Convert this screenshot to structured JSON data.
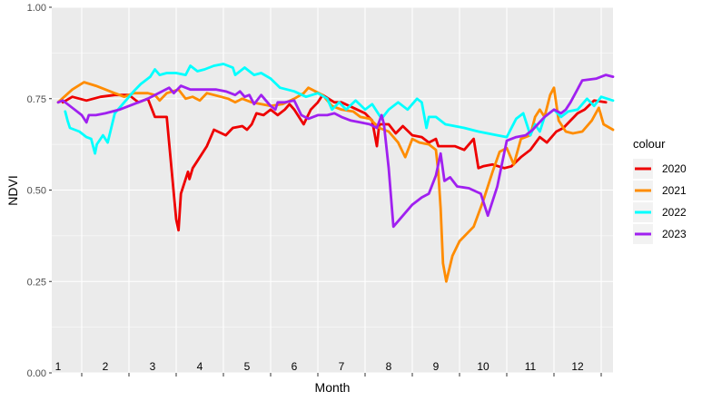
{
  "chart_data": {
    "type": "line",
    "xlabel": "Month",
    "ylabel": "NDVI",
    "ylim": [
      0,
      1
    ],
    "y_ticks": [
      {
        "v": 0,
        "label": "0.00"
      },
      {
        "v": 0.25,
        "label": "0.25"
      },
      {
        "v": 0.5,
        "label": "0.50"
      },
      {
        "v": 0.75,
        "label": "0.75"
      },
      {
        "v": 1,
        "label": "1.00"
      }
    ],
    "month_labels": [
      "1",
      "2",
      "3",
      "4",
      "5",
      "6",
      "7",
      "8",
      "9",
      "10",
      "11",
      "12"
    ],
    "legend_title": "colour",
    "legend_position": "right",
    "background": "#ebebeb",
    "grid": true,
    "series": [
      {
        "name": "2020",
        "color": "#ee0000",
        "points": [
          [
            1.1,
            0.74
          ],
          [
            1.3,
            0.755
          ],
          [
            1.6,
            0.745
          ],
          [
            1.9,
            0.755
          ],
          [
            2.2,
            0.76
          ],
          [
            2.5,
            0.76
          ],
          [
            2.7,
            0.74
          ],
          [
            2.9,
            0.75
          ],
          [
            3.05,
            0.7
          ],
          [
            3.3,
            0.7
          ],
          [
            3.5,
            0.42
          ],
          [
            3.55,
            0.39
          ],
          [
            3.6,
            0.49
          ],
          [
            3.75,
            0.55
          ],
          [
            3.78,
            0.53
          ],
          [
            3.85,
            0.56
          ],
          [
            3.95,
            0.58
          ],
          [
            4.15,
            0.62
          ],
          [
            4.3,
            0.665
          ],
          [
            4.55,
            0.65
          ],
          [
            4.7,
            0.67
          ],
          [
            4.9,
            0.675
          ],
          [
            5.0,
            0.665
          ],
          [
            5.1,
            0.68
          ],
          [
            5.2,
            0.71
          ],
          [
            5.35,
            0.705
          ],
          [
            5.5,
            0.72
          ],
          [
            5.65,
            0.705
          ],
          [
            5.8,
            0.72
          ],
          [
            5.9,
            0.735
          ],
          [
            6.0,
            0.72
          ],
          [
            6.2,
            0.68
          ],
          [
            6.35,
            0.72
          ],
          [
            6.5,
            0.74
          ],
          [
            6.6,
            0.76
          ],
          [
            6.85,
            0.74
          ],
          [
            7.0,
            0.74
          ],
          [
            7.25,
            0.725
          ],
          [
            7.5,
            0.71
          ],
          [
            7.65,
            0.69
          ],
          [
            7.75,
            0.62
          ],
          [
            7.8,
            0.68
          ],
          [
            8.0,
            0.68
          ],
          [
            8.15,
            0.655
          ],
          [
            8.3,
            0.675
          ],
          [
            8.5,
            0.65
          ],
          [
            8.7,
            0.645
          ],
          [
            8.85,
            0.63
          ],
          [
            9.0,
            0.64
          ],
          [
            9.05,
            0.62
          ],
          [
            9.2,
            0.62
          ],
          [
            9.4,
            0.62
          ],
          [
            9.6,
            0.61
          ],
          [
            9.8,
            0.64
          ],
          [
            9.9,
            0.56
          ],
          [
            10.0,
            0.565
          ],
          [
            10.2,
            0.57
          ],
          [
            10.45,
            0.56
          ],
          [
            10.6,
            0.565
          ],
          [
            10.8,
            0.59
          ],
          [
            11.0,
            0.61
          ],
          [
            11.2,
            0.645
          ],
          [
            11.35,
            0.63
          ],
          [
            11.55,
            0.66
          ],
          [
            11.7,
            0.67
          ],
          [
            11.85,
            0.69
          ],
          [
            12.0,
            0.71
          ],
          [
            12.15,
            0.72
          ],
          [
            12.35,
            0.745
          ],
          [
            12.6,
            0.74
          ]
        ]
      },
      {
        "name": "2021",
        "color": "#ff8c00",
        "points": [
          [
            1.0,
            0.74
          ],
          [
            1.3,
            0.775
          ],
          [
            1.55,
            0.795
          ],
          [
            1.8,
            0.785
          ],
          [
            2.1,
            0.77
          ],
          [
            2.4,
            0.755
          ],
          [
            2.6,
            0.765
          ],
          [
            2.9,
            0.765
          ],
          [
            3.05,
            0.76
          ],
          [
            3.15,
            0.745
          ],
          [
            3.3,
            0.765
          ],
          [
            3.55,
            0.775
          ],
          [
            3.7,
            0.75
          ],
          [
            3.85,
            0.755
          ],
          [
            4.0,
            0.745
          ],
          [
            4.15,
            0.765
          ],
          [
            4.3,
            0.76
          ],
          [
            4.45,
            0.755
          ],
          [
            4.6,
            0.75
          ],
          [
            4.75,
            0.74
          ],
          [
            4.9,
            0.75
          ],
          [
            5.1,
            0.74
          ],
          [
            5.3,
            0.735
          ],
          [
            5.5,
            0.73
          ],
          [
            5.75,
            0.735
          ],
          [
            6.0,
            0.75
          ],
          [
            6.2,
            0.765
          ],
          [
            6.3,
            0.78
          ],
          [
            6.45,
            0.77
          ],
          [
            6.6,
            0.76
          ],
          [
            6.8,
            0.73
          ],
          [
            7.0,
            0.72
          ],
          [
            7.25,
            0.715
          ],
          [
            7.4,
            0.7
          ],
          [
            7.6,
            0.695
          ],
          [
            7.8,
            0.67
          ],
          [
            8.0,
            0.66
          ],
          [
            8.2,
            0.63
          ],
          [
            8.35,
            0.59
          ],
          [
            8.5,
            0.64
          ],
          [
            8.65,
            0.63
          ],
          [
            8.85,
            0.625
          ],
          [
            9.0,
            0.61
          ],
          [
            9.05,
            0.55
          ],
          [
            9.1,
            0.45
          ],
          [
            9.15,
            0.3
          ],
          [
            9.22,
            0.25
          ],
          [
            9.35,
            0.32
          ],
          [
            9.5,
            0.36
          ],
          [
            9.8,
            0.4
          ],
          [
            10.0,
            0.47
          ],
          [
            10.2,
            0.55
          ],
          [
            10.35,
            0.605
          ],
          [
            10.5,
            0.615
          ],
          [
            10.65,
            0.57
          ],
          [
            10.8,
            0.64
          ],
          [
            11.0,
            0.65
          ],
          [
            11.1,
            0.7
          ],
          [
            11.2,
            0.72
          ],
          [
            11.3,
            0.7
          ],
          [
            11.42,
            0.76
          ],
          [
            11.5,
            0.78
          ],
          [
            11.6,
            0.69
          ],
          [
            11.75,
            0.66
          ],
          [
            11.9,
            0.655
          ],
          [
            12.1,
            0.66
          ],
          [
            12.3,
            0.69
          ],
          [
            12.45,
            0.725
          ],
          [
            12.55,
            0.68
          ],
          [
            12.75,
            0.665
          ]
        ]
      },
      {
        "name": "2022",
        "color": "#00ffff",
        "points": [
          [
            1.15,
            0.715
          ],
          [
            1.2,
            0.69
          ],
          [
            1.25,
            0.67
          ],
          [
            1.45,
            0.66
          ],
          [
            1.6,
            0.645
          ],
          [
            1.7,
            0.64
          ],
          [
            1.78,
            0.6
          ],
          [
            1.82,
            0.625
          ],
          [
            1.95,
            0.65
          ],
          [
            2.05,
            0.63
          ],
          [
            2.2,
            0.71
          ],
          [
            2.4,
            0.74
          ],
          [
            2.6,
            0.77
          ],
          [
            2.75,
            0.79
          ],
          [
            2.95,
            0.81
          ],
          [
            3.05,
            0.83
          ],
          [
            3.15,
            0.815
          ],
          [
            3.3,
            0.82
          ],
          [
            3.5,
            0.82
          ],
          [
            3.7,
            0.815
          ],
          [
            3.8,
            0.84
          ],
          [
            3.95,
            0.825
          ],
          [
            4.1,
            0.83
          ],
          [
            4.3,
            0.84
          ],
          [
            4.5,
            0.845
          ],
          [
            4.7,
            0.835
          ],
          [
            4.75,
            0.815
          ],
          [
            4.95,
            0.835
          ],
          [
            5.15,
            0.815
          ],
          [
            5.3,
            0.82
          ],
          [
            5.5,
            0.805
          ],
          [
            5.7,
            0.78
          ],
          [
            6.0,
            0.77
          ],
          [
            6.25,
            0.755
          ],
          [
            6.5,
            0.765
          ],
          [
            6.7,
            0.75
          ],
          [
            6.8,
            0.72
          ],
          [
            6.95,
            0.74
          ],
          [
            7.1,
            0.72
          ],
          [
            7.3,
            0.745
          ],
          [
            7.5,
            0.72
          ],
          [
            7.65,
            0.735
          ],
          [
            7.85,
            0.695
          ],
          [
            8.0,
            0.72
          ],
          [
            8.2,
            0.74
          ],
          [
            8.4,
            0.72
          ],
          [
            8.6,
            0.75
          ],
          [
            8.7,
            0.74
          ],
          [
            8.8,
            0.67
          ],
          [
            8.85,
            0.7
          ],
          [
            9.0,
            0.7
          ],
          [
            9.2,
            0.68
          ],
          [
            9.6,
            0.67
          ],
          [
            9.9,
            0.66
          ],
          [
            10.3,
            0.65
          ],
          [
            10.5,
            0.645
          ],
          [
            10.7,
            0.695
          ],
          [
            10.85,
            0.71
          ],
          [
            11.0,
            0.65
          ],
          [
            11.1,
            0.68
          ],
          [
            11.2,
            0.66
          ],
          [
            11.3,
            0.7
          ],
          [
            11.5,
            0.72
          ],
          [
            11.65,
            0.7
          ],
          [
            11.8,
            0.715
          ],
          [
            12.0,
            0.72
          ],
          [
            12.2,
            0.75
          ],
          [
            12.35,
            0.73
          ],
          [
            12.5,
            0.755
          ],
          [
            12.75,
            0.745
          ]
        ]
      },
      {
        "name": "2023",
        "color": "#a020f0",
        "points": [
          [
            1.0,
            0.74
          ],
          [
            1.1,
            0.745
          ],
          [
            1.2,
            0.735
          ],
          [
            1.35,
            0.72
          ],
          [
            1.5,
            0.705
          ],
          [
            1.6,
            0.685
          ],
          [
            1.65,
            0.705
          ],
          [
            1.8,
            0.705
          ],
          [
            2.0,
            0.71
          ],
          [
            2.3,
            0.72
          ],
          [
            2.6,
            0.735
          ],
          [
            2.9,
            0.75
          ],
          [
            3.2,
            0.77
          ],
          [
            3.35,
            0.78
          ],
          [
            3.45,
            0.765
          ],
          [
            3.6,
            0.785
          ],
          [
            3.8,
            0.775
          ],
          [
            4.0,
            0.775
          ],
          [
            4.35,
            0.775
          ],
          [
            4.55,
            0.77
          ],
          [
            4.75,
            0.76
          ],
          [
            4.85,
            0.77
          ],
          [
            4.95,
            0.755
          ],
          [
            5.05,
            0.76
          ],
          [
            5.15,
            0.735
          ],
          [
            5.3,
            0.76
          ],
          [
            5.4,
            0.745
          ],
          [
            5.5,
            0.73
          ],
          [
            5.6,
            0.72
          ],
          [
            5.65,
            0.74
          ],
          [
            5.8,
            0.74
          ],
          [
            6.0,
            0.745
          ],
          [
            6.15,
            0.705
          ],
          [
            6.3,
            0.695
          ],
          [
            6.5,
            0.705
          ],
          [
            6.7,
            0.705
          ],
          [
            6.85,
            0.71
          ],
          [
            7.0,
            0.7
          ],
          [
            7.2,
            0.69
          ],
          [
            7.4,
            0.685
          ],
          [
            7.6,
            0.68
          ],
          [
            7.75,
            0.67
          ],
          [
            7.85,
            0.705
          ],
          [
            7.9,
            0.68
          ],
          [
            8.0,
            0.56
          ],
          [
            8.05,
            0.48
          ],
          [
            8.1,
            0.4
          ],
          [
            8.3,
            0.43
          ],
          [
            8.5,
            0.46
          ],
          [
            8.7,
            0.48
          ],
          [
            8.85,
            0.49
          ],
          [
            9.0,
            0.54
          ],
          [
            9.1,
            0.6
          ],
          [
            9.18,
            0.525
          ],
          [
            9.3,
            0.535
          ],
          [
            9.45,
            0.51
          ],
          [
            9.7,
            0.505
          ],
          [
            9.95,
            0.49
          ],
          [
            10.1,
            0.43
          ],
          [
            10.3,
            0.51
          ],
          [
            10.5,
            0.635
          ],
          [
            10.7,
            0.645
          ],
          [
            10.9,
            0.65
          ],
          [
            11.05,
            0.665
          ],
          [
            11.3,
            0.7
          ],
          [
            11.5,
            0.72
          ],
          [
            11.65,
            0.71
          ],
          [
            11.75,
            0.72
          ],
          [
            11.85,
            0.74
          ],
          [
            12.1,
            0.8
          ],
          [
            12.4,
            0.805
          ],
          [
            12.6,
            0.815
          ],
          [
            12.75,
            0.81
          ]
        ]
      }
    ]
  }
}
